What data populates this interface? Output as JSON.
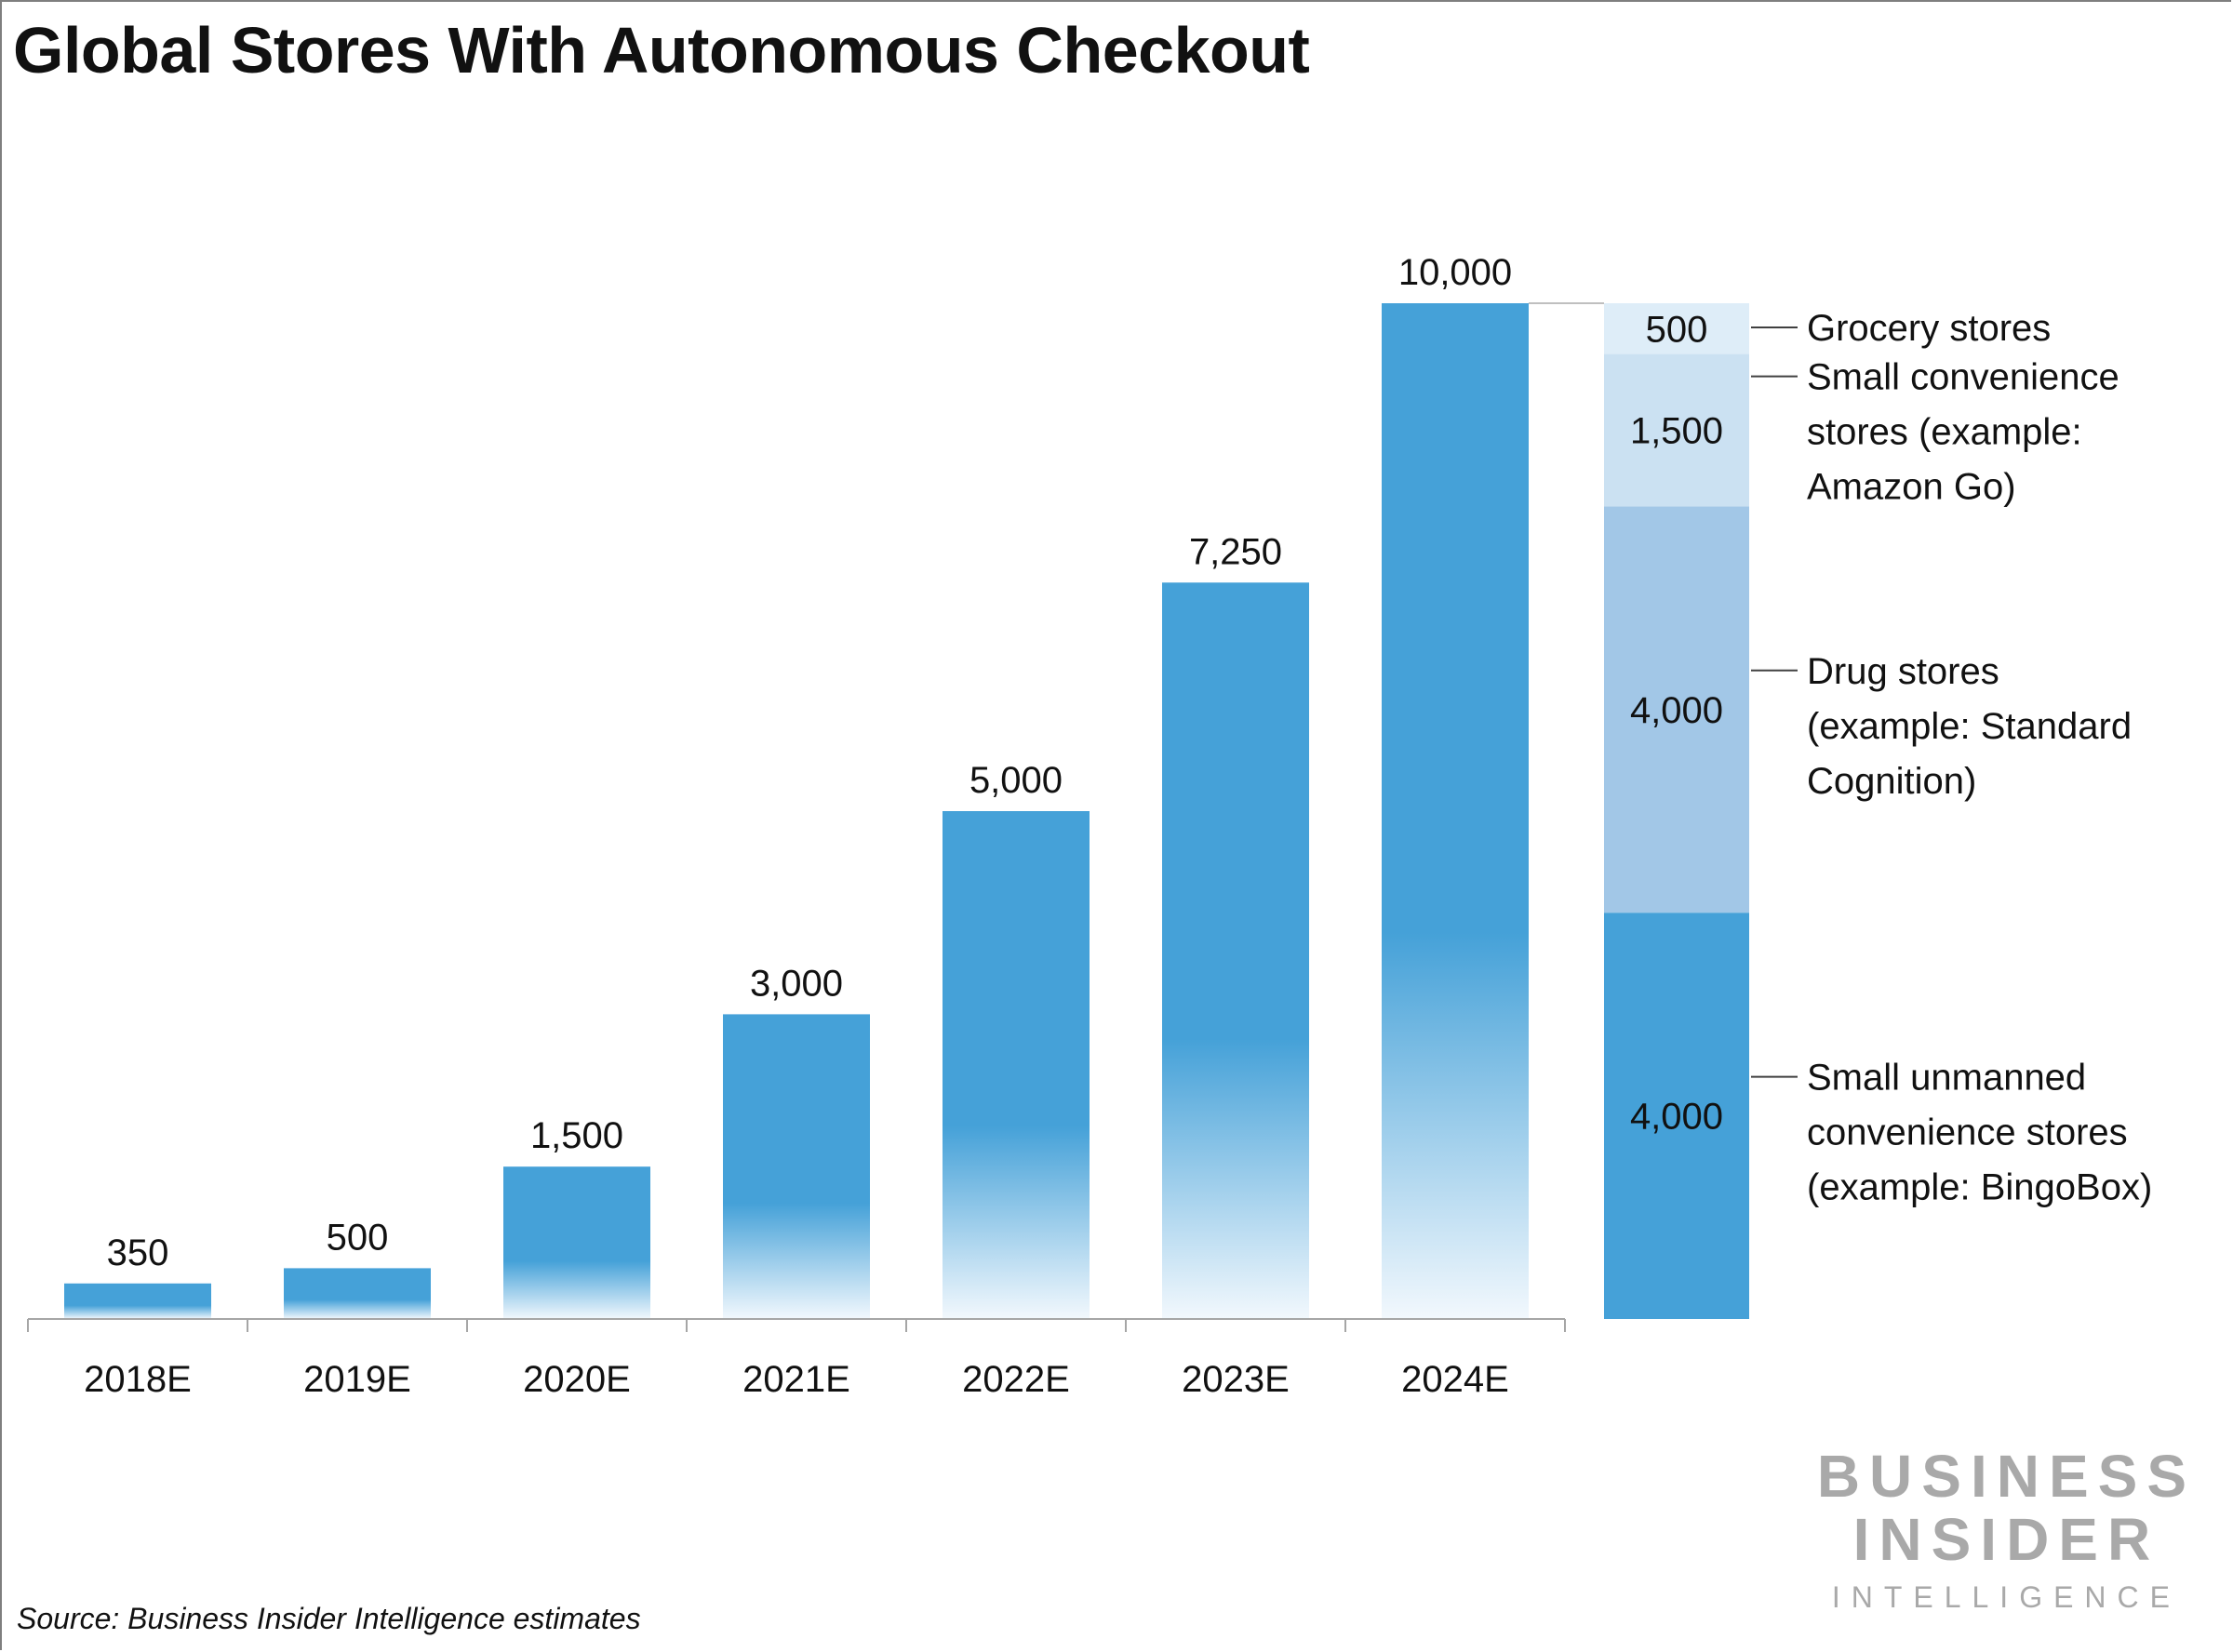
{
  "title": "Global Stores With Autonomous Checkout",
  "source": "Source: Business Insider Intelligence estimates",
  "logo": {
    "line1": "BUSINESS",
    "line2": "INSIDER",
    "line3": "INTELLIGENCE"
  },
  "colors": {
    "bar": "#45A1D8",
    "stack": [
      "#45A1D8",
      "#A2C7E7",
      "#CBE1F2",
      "#DEEDF8"
    ],
    "axis": "#A6A6A6",
    "text": "#111111"
  },
  "chart_data": {
    "type": "bar",
    "categories": [
      "2018E",
      "2019E",
      "2020E",
      "2021E",
      "2022E",
      "2023E",
      "2024E"
    ],
    "values": [
      350,
      500,
      1500,
      3000,
      5000,
      7250,
      10000
    ],
    "data_labels": [
      "350",
      "500",
      "1,500",
      "3,000",
      "5,000",
      "7,250",
      "10,000"
    ],
    "ylim": [
      0,
      10000
    ],
    "grid": false,
    "stacked_breakdown": {
      "total": 10000,
      "segments": [
        {
          "value": 4000,
          "label": "4,000",
          "category": [
            "Small unmanned",
            "convenience stores",
            "(example: BingoBox)"
          ]
        },
        {
          "value": 4000,
          "label": "4,000",
          "category": [
            "Drug stores",
            "(example: Standard",
            "Cognition)"
          ]
        },
        {
          "value": 1500,
          "label": "1,500",
          "category": [
            "Small convenience",
            "stores (example:",
            "Amazon Go)"
          ]
        },
        {
          "value": 500,
          "label": "500",
          "category": [
            "Grocery stores"
          ]
        }
      ]
    }
  }
}
